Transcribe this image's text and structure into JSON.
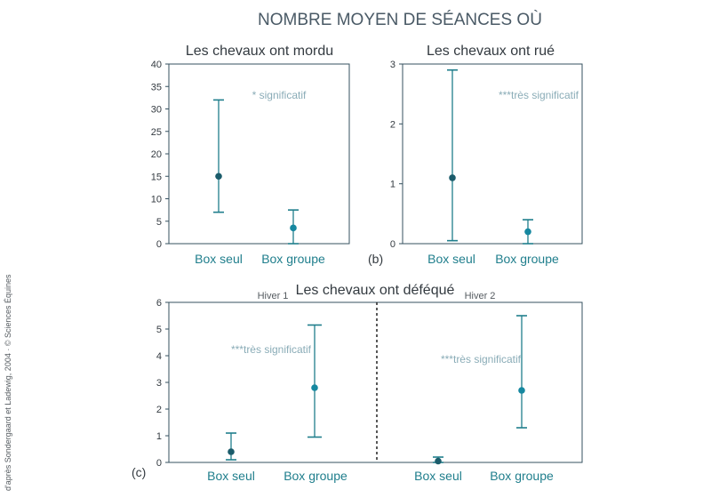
{
  "figure": {
    "title": "NOMBRE MOYEN DE SÉANCES OÙ",
    "credit": "d'après Sondergaard et Ladewig, 2004 · © Sciences Équines",
    "colors": {
      "axis": "#35505f",
      "errorbar": "#1f7e8c",
      "point_dark": "#1b5c6b",
      "point_light": "#1688a0",
      "annotation": "#8aacb7",
      "title": "#4a5a66"
    }
  },
  "chart_data": [
    {
      "type": "scatter",
      "panel_label": "",
      "title": "Les chevaux ont mordu",
      "categories": [
        "Box seul",
        "Box groupe"
      ],
      "values": [
        15,
        3.5
      ],
      "err_low": [
        7,
        0
      ],
      "err_high": [
        32,
        7.5
      ],
      "ylim": [
        0,
        40
      ],
      "yticks": [
        "0",
        "5",
        "10",
        "15",
        "20",
        "25",
        "30",
        "35",
        "40"
      ],
      "annotation": "* significatif"
    },
    {
      "type": "scatter",
      "panel_label": "(b)",
      "title": "Les chevaux ont rué",
      "categories": [
        "Box seul",
        "Box groupe"
      ],
      "values": [
        1.1,
        0.2
      ],
      "err_low": [
        0.05,
        0
      ],
      "err_high": [
        2.9,
        0.4
      ],
      "ylim": [
        0,
        3
      ],
      "yticks": [
        "0",
        "1",
        "2",
        "3"
      ],
      "annotation": "***très significatif"
    },
    {
      "type": "scatter",
      "panel_label": "(c)",
      "title": "Les chevaux ont déféqué",
      "ylim": [
        0,
        6
      ],
      "yticks": [
        "0",
        "1",
        "2",
        "3",
        "4",
        "5",
        "6"
      ],
      "groups": [
        {
          "name": "Hiver 1",
          "categories": [
            "Box seul",
            "Box groupe"
          ],
          "values": [
            0.4,
            2.8
          ],
          "err_low": [
            0.1,
            0.95
          ],
          "err_high": [
            1.1,
            5.15
          ],
          "annotation": "***très significatif"
        },
        {
          "name": "Hiver 2",
          "categories": [
            "Box seul",
            "Box groupe"
          ],
          "values": [
            0.05,
            2.7
          ],
          "err_low": [
            0,
            1.3
          ],
          "err_high": [
            0.2,
            5.5
          ],
          "annotation": "***très significatif"
        }
      ]
    }
  ]
}
